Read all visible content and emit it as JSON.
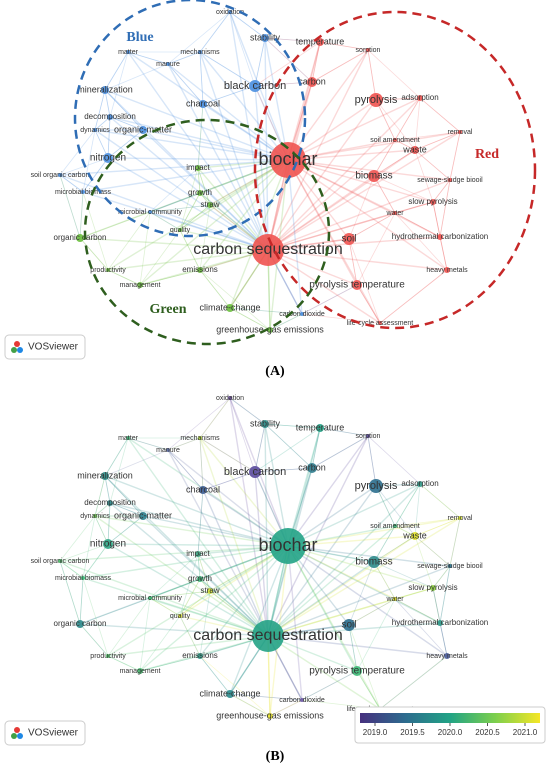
{
  "panel_a": {
    "nodes": [
      "oxidation",
      "stability",
      "temperature",
      "sorption",
      "matter",
      "mechanisms",
      "manure",
      "black carbon",
      "carbon",
      "mineralization",
      "pyrolysis",
      "adsorption",
      "charcoal",
      "decomposition",
      "organic-matter",
      "dynamics",
      "removal",
      "soil amendment",
      "waste",
      "nitrogen",
      "impact",
      "biochar",
      "soil organic carbon",
      "biomass",
      "sewage-sludge biooil",
      "microbial biomass",
      "growth",
      "straw",
      "slow pyrolysis",
      "microbial community",
      "water",
      "quality",
      "organic carbon",
      "soil",
      "hydrothermal carbonization",
      "carbon sequestration",
      "productivity",
      "emissions",
      "heavy metals",
      "management",
      "pyrolysis temperature",
      "climate-change",
      "carbon dioxide",
      "life-cycle assessment",
      "greenhouse-gas emissions"
    ],
    "clusters": [
      "Blue",
      "Red",
      "Green"
    ],
    "logo": "VOSviewer",
    "caption": "(A)"
  },
  "panel_b": {
    "nodes": [
      "oxidation",
      "stability",
      "temperature",
      "sorption",
      "matter",
      "mechanisms",
      "manure",
      "black carbon",
      "carbon",
      "mineralization",
      "pyrolysis",
      "adsorption",
      "charcoal",
      "decomposition",
      "organic-matter",
      "dynamics",
      "removal",
      "soil amendment",
      "waste",
      "nitrogen",
      "impact",
      "biochar",
      "soil organic carbon",
      "biomass",
      "sewage-sludge biooil",
      "microbial biomass",
      "growth",
      "straw",
      "slow pyrolysis",
      "microbial community",
      "water",
      "quality",
      "organic carbon",
      "soil",
      "hydrothermal carbonization",
      "carbon sequestration",
      "productivity",
      "emissions",
      "heavy metals",
      "management",
      "pyrolysis temperature",
      "climate-change",
      "carbon dioxide",
      "life-cycle assessment",
      "greenhouse-gas emissions"
    ],
    "logo": "VOSviewer",
    "caption": "(B)",
    "colorbar": {
      "range": [
        2018.8,
        2021.2
      ],
      "ticks": [
        {
          "value": 2019,
          "label": "2019.0"
        },
        {
          "value": 2019.5,
          "label": "2019.5"
        },
        {
          "value": 2020,
          "label": "2020.0"
        },
        {
          "value": 2020.5,
          "label": "2020.5"
        },
        {
          "value": 2021,
          "label": "2021.0"
        }
      ]
    }
  }
}
